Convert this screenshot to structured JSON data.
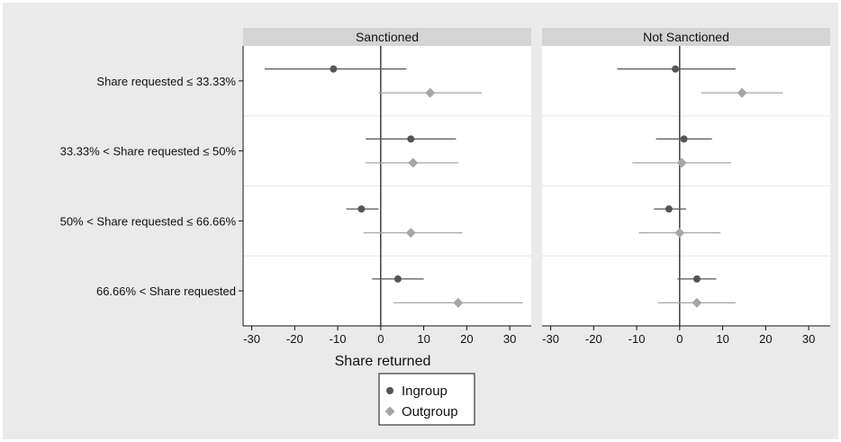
{
  "chart_data": {
    "type": "scatter",
    "subtype": "coefficient-plot-with-confidence-intervals",
    "panels": [
      "Sanctioned",
      "Not Sanctioned"
    ],
    "categories": [
      "Share requested ≤ 33.33%",
      "33.33% < Share requested ≤ 50%",
      "50% < Share requested ≤ 66.66%",
      "66.66% < Share requested"
    ],
    "xlabel": "Share returned",
    "xlim": [
      -32,
      35
    ],
    "xticks": [
      "-30",
      "-20",
      "-10",
      "0",
      "10",
      "20",
      "30"
    ],
    "reference_line_x": 0,
    "legend_position": "bottom-center",
    "series": [
      {
        "name": "Ingroup",
        "marker": "circle",
        "color": "#555555",
        "by_panel": {
          "Sanctioned": [
            {
              "estimate": -11,
              "ci": [
                -27,
                6
              ]
            },
            {
              "estimate": 7,
              "ci": [
                -3.5,
                17.5
              ]
            },
            {
              "estimate": -4.5,
              "ci": [
                -8,
                -0.5
              ]
            },
            {
              "estimate": 4,
              "ci": [
                -2,
                10
              ]
            }
          ],
          "Not Sanctioned": [
            {
              "estimate": -1,
              "ci": [
                -14.5,
                13
              ]
            },
            {
              "estimate": 1,
              "ci": [
                -5.5,
                7.5
              ]
            },
            {
              "estimate": -2.5,
              "ci": [
                -6,
                1.5
              ]
            },
            {
              "estimate": 4,
              "ci": [
                -0.5,
                8.5
              ]
            }
          ]
        }
      },
      {
        "name": "Outgroup",
        "marker": "diamond",
        "color": "#a6a6a6",
        "by_panel": {
          "Sanctioned": [
            {
              "estimate": 11.5,
              "ci": [
                -0.5,
                23.5
              ]
            },
            {
              "estimate": 7.5,
              "ci": [
                -3.5,
                18
              ]
            },
            {
              "estimate": 7,
              "ci": [
                -4,
                19
              ]
            },
            {
              "estimate": 18,
              "ci": [
                3,
                33
              ]
            }
          ],
          "Not Sanctioned": [
            {
              "estimate": 14.5,
              "ci": [
                5,
                24
              ]
            },
            {
              "estimate": 0.5,
              "ci": [
                -11,
                12
              ]
            },
            {
              "estimate": 0,
              "ci": [
                -9.5,
                9.5
              ]
            },
            {
              "estimate": 4,
              "ci": [
                -5,
                13
              ]
            }
          ]
        }
      }
    ]
  }
}
